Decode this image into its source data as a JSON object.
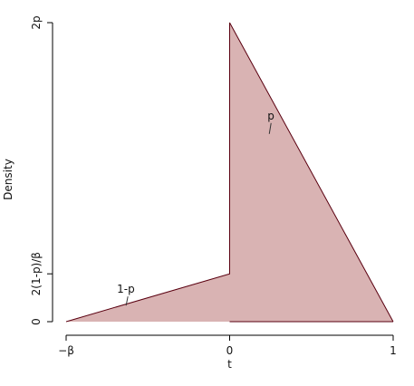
{
  "chart_data": {
    "type": "area",
    "title": "",
    "xlabel": "t",
    "ylabel": "Density",
    "x_ticks": [
      {
        "value": -1,
        "label": "−β"
      },
      {
        "value": 0,
        "label": "0"
      },
      {
        "value": 1,
        "label": "1"
      }
    ],
    "y_ticks": [
      {
        "value": 0,
        "label": "0"
      },
      {
        "value": 0.32,
        "label": "2(1-p)/β"
      },
      {
        "value": 2,
        "label": "2p"
      }
    ],
    "xlim": [
      -1,
      1
    ],
    "ylim": [
      0,
      2
    ],
    "series": [
      {
        "x": [
          -1,
          0,
          0,
          1
        ],
        "y": [
          0,
          0.32,
          2,
          0
        ]
      }
    ],
    "annotations": [
      {
        "text": "1-p",
        "x": -0.65,
        "y": 0.12
      },
      {
        "text": "p",
        "x": 0.27,
        "y": 1.28
      }
    ],
    "colors": {
      "fill": "#d9b3b3",
      "line": "#5a0010",
      "axis": "#000000"
    },
    "grid": false,
    "legend": "none"
  }
}
